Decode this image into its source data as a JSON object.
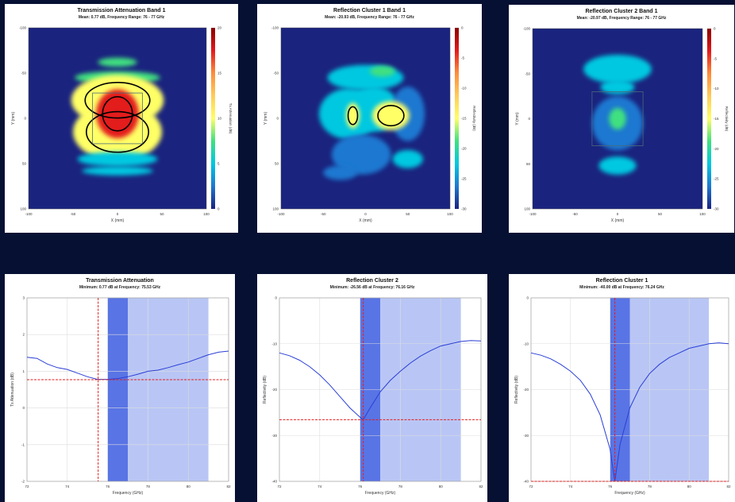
{
  "colors": {
    "background": "#061033",
    "curve": "#2a3fd6",
    "marker": "#e02020",
    "band_dark": "#3c5ce0",
    "band_light": "#b9c6f5"
  },
  "chart_data": [
    {
      "type": "heatmap",
      "title": "Transmission Attenuation Band 1",
      "subtitle": "Mean: 0.77 dB, Frequency Range: 76 - 77 GHz",
      "xlabel": "X (mm)",
      "ylabel": "Y (mm)",
      "xticks": [
        "-100",
        "-50",
        "0",
        "50",
        "100"
      ],
      "yticks": [
        "-100",
        "-50",
        "0",
        "50",
        "100"
      ],
      "colorbar_label": "Tx Attenuation (dB)",
      "colorbar_ticks": [
        "20",
        "15",
        "10",
        "5",
        "0"
      ],
      "colormap": [
        "#8b0000",
        "#e31a1c",
        "#fd8d3c",
        "#fecc5c",
        "#ffff66",
        "#41e080",
        "#00c8e0",
        "#1f78d0",
        "#1a237e"
      ],
      "xlim": [
        -100,
        100
      ],
      "ylim": [
        -100,
        100
      ],
      "clim": [
        0,
        20
      ],
      "blobs": [
        {
          "cx": 0,
          "cy": -62,
          "rx": 22,
          "ry": 5,
          "value": 7
        },
        {
          "cx": 0,
          "cy": -45,
          "rx": 48,
          "ry": 7,
          "value": 8
        },
        {
          "cx": 0,
          "cy": -20,
          "rx": 52,
          "ry": 28,
          "value": 10
        },
        {
          "cx": 0,
          "cy": 15,
          "rx": 50,
          "ry": 32,
          "value": 11
        },
        {
          "cx": 0,
          "cy": 45,
          "rx": 45,
          "ry": 8,
          "value": 6
        },
        {
          "cx": 0,
          "cy": 58,
          "rx": 40,
          "ry": 5,
          "value": 5
        },
        {
          "cx": 0,
          "cy": -5,
          "rx": 24,
          "ry": 27,
          "value": 18
        }
      ],
      "frame": [
        -28,
        -28,
        28,
        28
      ]
    },
    {
      "type": "heatmap",
      "title": "Reflection Cluster 1 Band 1",
      "subtitle": "Mean: -20.93 dB, Frequency Range: 76 - 77 GHz",
      "xlabel": "X (mm)",
      "ylabel": "Y (mm)",
      "xticks": [
        "-100",
        "-50",
        "0",
        "50",
        "100"
      ],
      "yticks": [
        "-100",
        "-50",
        "0",
        "50",
        "100"
      ],
      "colorbar_label": "Reflectivity (dB)",
      "colorbar_ticks": [
        "0",
        "-5",
        "-10",
        "-15",
        "-20",
        "-25",
        "-30"
      ],
      "colormap": [
        "#8b0000",
        "#e31a1c",
        "#fd8d3c",
        "#fecc5c",
        "#ffff66",
        "#41e080",
        "#00c8e0",
        "#1f78d0",
        "#1a237e"
      ],
      "xlim": [
        -100,
        100
      ],
      "ylim": [
        -100,
        100
      ],
      "clim": [
        -30,
        0
      ],
      "blobs": [
        {
          "cx": 0,
          "cy": -45,
          "rx": 45,
          "ry": 14,
          "value": -24
        },
        {
          "cx": 20,
          "cy": -52,
          "rx": 15,
          "ry": 6,
          "value": -17
        },
        {
          "cx": -20,
          "cy": -5,
          "rx": 35,
          "ry": 28,
          "value": -24
        },
        {
          "cx": 10,
          "cy": -10,
          "rx": 30,
          "ry": 25,
          "value": -22
        },
        {
          "cx": 50,
          "cy": -5,
          "rx": 20,
          "ry": 30,
          "value": -25
        },
        {
          "cx": -5,
          "cy": 40,
          "rx": 35,
          "ry": 22,
          "value": -25
        },
        {
          "cx": 50,
          "cy": 45,
          "rx": 18,
          "ry": 10,
          "value": -24
        },
        {
          "cx": -30,
          "cy": 60,
          "rx": 20,
          "ry": 8,
          "value": -25
        },
        {
          "cx": -15,
          "cy": -3,
          "rx": 8,
          "ry": 14,
          "value": -15
        },
        {
          "cx": 30,
          "cy": -3,
          "rx": 22,
          "ry": 16,
          "value": -16
        }
      ],
      "frame": []
    },
    {
      "type": "heatmap",
      "title": "Reflection Cluster 2 Band 1",
      "subtitle": "Mean: -20.97 dB, Frequency Range: 76 - 77 GHz",
      "xlabel": "X (mm)",
      "ylabel": "Y (mm)",
      "xticks": [
        "-100",
        "-50",
        "0",
        "50",
        "100"
      ],
      "yticks": [
        "-100",
        "-50",
        "0",
        "50",
        "100"
      ],
      "colorbar_label": "Reflectivity (dB)",
      "colorbar_ticks": [
        "0",
        "-5",
        "-10",
        "-15",
        "-20",
        "-25",
        "-30"
      ],
      "colormap": [
        "#8b0000",
        "#e31a1c",
        "#fd8d3c",
        "#fecc5c",
        "#ffff66",
        "#41e080",
        "#00c8e0",
        "#1f78d0",
        "#1a237e"
      ],
      "xlim": [
        -100,
        100
      ],
      "ylim": [
        -100,
        100
      ],
      "clim": [
        -30,
        0
      ],
      "blobs": [
        {
          "cx": 0,
          "cy": -55,
          "rx": 40,
          "ry": 16,
          "value": -21
        },
        {
          "cx": 0,
          "cy": -35,
          "rx": 20,
          "ry": 8,
          "value": -24
        },
        {
          "cx": 0,
          "cy": 5,
          "rx": 30,
          "ry": 30,
          "value": -26
        },
        {
          "cx": 0,
          "cy": 0,
          "rx": 10,
          "ry": 12,
          "value": -17
        },
        {
          "cx": 0,
          "cy": 52,
          "rx": 22,
          "ry": 10,
          "value": -22
        }
      ],
      "frame": [
        -30,
        -30,
        30,
        30
      ]
    },
    {
      "type": "line",
      "title": "Transmission Attenuation",
      "subtitle": "Minimum: 0.77 dB at Frequency: 75.53 GHz",
      "xlabel": "Frequency (GHz)",
      "ylabel": "Tx Attenuation (dB)",
      "xlim": [
        72,
        82
      ],
      "ylim": [
        -2,
        3
      ],
      "xticks": [
        72,
        74,
        76,
        78,
        80,
        82
      ],
      "yticks": [
        -2,
        -1,
        0,
        1,
        2,
        3
      ],
      "x": [
        72,
        72.5,
        73,
        73.5,
        74,
        74.5,
        75,
        75.5,
        76,
        76.5,
        77,
        77.5,
        78,
        78.5,
        79,
        79.5,
        80,
        80.5,
        81,
        81.5,
        82
      ],
      "y": [
        1.38,
        1.35,
        1.2,
        1.1,
        1.05,
        0.95,
        0.85,
        0.78,
        0.78,
        0.8,
        0.85,
        0.92,
        1.0,
        1.03,
        1.1,
        1.18,
        1.25,
        1.35,
        1.45,
        1.52,
        1.55
      ],
      "marker": {
        "x": 75.53,
        "y": 0.77
      },
      "band_dark": [
        76,
        77
      ],
      "band_light": [
        77,
        81
      ]
    },
    {
      "type": "line",
      "title": "Reflection Cluster 2",
      "subtitle": "Minimum: -26.56 dB at Frequency: 76.16 GHz",
      "xlabel": "Frequency (GHz)",
      "ylabel": "Reflectivity (dB)",
      "xlim": [
        72,
        82
      ],
      "ylim": [
        -40,
        0
      ],
      "xticks": [
        72,
        74,
        76,
        78,
        80,
        82
      ],
      "yticks": [
        -40,
        -30,
        -20,
        -10,
        0
      ],
      "x": [
        72,
        72.5,
        73,
        73.5,
        74,
        74.5,
        75,
        75.5,
        76,
        76.16,
        76.5,
        77,
        77.5,
        78,
        78.5,
        79,
        79.5,
        80,
        80.5,
        81,
        81.5,
        82
      ],
      "y": [
        -12.0,
        -12.6,
        -13.6,
        -15.0,
        -16.8,
        -19.0,
        -21.5,
        -24.0,
        -26.0,
        -26.56,
        -24.0,
        -20.5,
        -18.0,
        -16.0,
        -14.2,
        -12.7,
        -11.5,
        -10.5,
        -10.0,
        -9.5,
        -9.3,
        -9.4
      ],
      "marker": {
        "x": 76.16,
        "y": -26.56
      },
      "band_dark": [
        76,
        77
      ],
      "band_light": [
        77,
        81
      ]
    },
    {
      "type": "line",
      "title": "Reflection Cluster 1",
      "subtitle": "Minimum: -40.00 dB at Frequency: 76.24 GHz",
      "xlabel": "Frequency (GHz)",
      "ylabel": "Reflectivity (dB)",
      "xlim": [
        72,
        82
      ],
      "ylim": [
        -40,
        0
      ],
      "xticks": [
        72,
        74,
        76,
        78,
        80,
        82
      ],
      "yticks": [
        -40,
        -30,
        -20,
        -10,
        0
      ],
      "x": [
        72,
        72.5,
        73,
        73.5,
        74,
        74.5,
        75,
        75.5,
        76,
        76.24,
        76.5,
        77,
        77.5,
        78,
        78.5,
        79,
        79.5,
        80,
        80.5,
        81,
        81.5,
        82
      ],
      "y": [
        -12.0,
        -12.5,
        -13.3,
        -14.5,
        -16.0,
        -18.0,
        -21.0,
        -25.5,
        -33.0,
        -40.0,
        -32.0,
        -24.0,
        -19.5,
        -16.5,
        -14.5,
        -13.0,
        -12.0,
        -11.0,
        -10.5,
        -10.0,
        -9.8,
        -10.0
      ],
      "marker": {
        "x": 76.24,
        "y": -40.0
      },
      "band_dark": [
        76,
        77
      ],
      "band_light": [
        77,
        81
      ]
    }
  ]
}
